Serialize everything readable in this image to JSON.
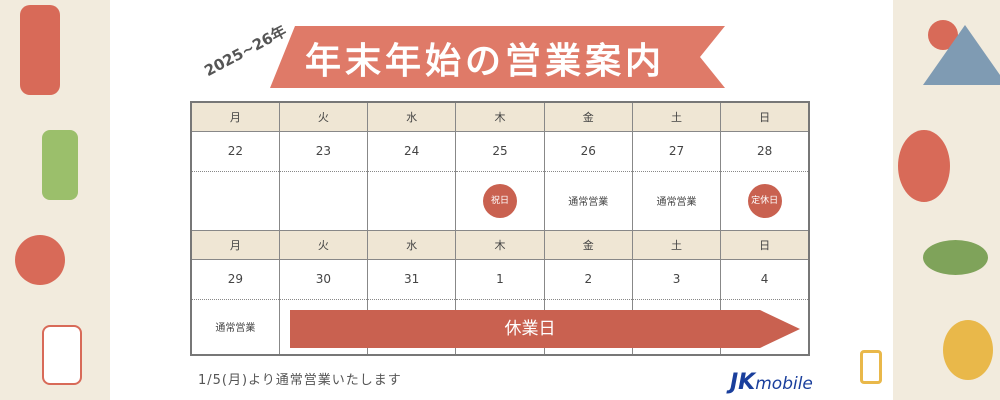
{
  "title": "年末年始の営業案内",
  "year": "2025~26年",
  "weekdays": [
    "月",
    "火",
    "水",
    "木",
    "金",
    "土",
    "日"
  ],
  "week1": {
    "dates": [
      "22",
      "23",
      "24",
      "25",
      "26",
      "27",
      "28"
    ],
    "status": [
      "",
      "",
      "",
      "祝日",
      "通常営業",
      "通常営業",
      "定休日"
    ]
  },
  "week2": {
    "dates": [
      "29",
      "30",
      "31",
      "1",
      "2",
      "3",
      "4"
    ],
    "status": [
      "通常営業"
    ],
    "closed_label": "休業日"
  },
  "note": "1/5(月)より通常営業いたします",
  "logo": {
    "brand": "JK",
    "suffix": "mobile"
  },
  "colors": {
    "accent": "#c96150",
    "banner": "#df7a68",
    "header": "#efe6d4",
    "side": "#f2ebdd"
  }
}
